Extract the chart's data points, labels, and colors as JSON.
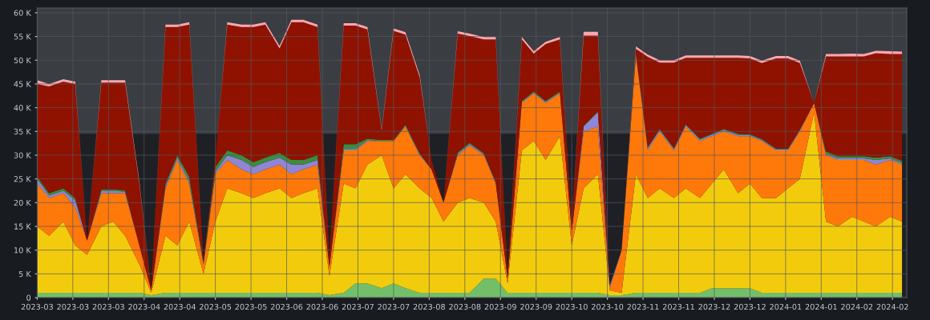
{
  "chart_data": {
    "type": "area",
    "stacked": true,
    "grid": true,
    "legend": false,
    "x": [
      "2023-03-01",
      "2023-03-06",
      "2023-03-12",
      "2023-03-17",
      "2023-03-22",
      "2023-03-28",
      "2023-04-02",
      "2023-04-07",
      "2023-04-13",
      "2023-04-18",
      "2023-04-24",
      "2023-04-29",
      "2023-05-04",
      "2023-05-10",
      "2023-05-15",
      "2023-05-20",
      "2023-05-26",
      "2023-05-31",
      "2023-06-05",
      "2023-06-11",
      "2023-06-16",
      "2023-06-21",
      "2023-06-27",
      "2023-07-02",
      "2023-07-08",
      "2023-07-13",
      "2023-07-18",
      "2023-07-24",
      "2023-07-29",
      "2023-08-03",
      "2023-08-09",
      "2023-08-14",
      "2023-08-19",
      "2023-08-25",
      "2023-08-30",
      "2023-09-05",
      "2023-09-10",
      "2023-09-15",
      "2023-09-21",
      "2023-09-26",
      "2023-10-01",
      "2023-10-07",
      "2023-10-12",
      "2023-10-17",
      "2023-10-23",
      "2023-10-28",
      "2023-11-02",
      "2023-11-08",
      "2023-11-13",
      "2023-11-18",
      "2023-11-24",
      "2023-11-29",
      "2023-12-05",
      "2023-12-10",
      "2023-12-15",
      "2023-12-21",
      "2023-12-26",
      "2023-12-31",
      "2024-01-06",
      "2024-01-11",
      "2024-01-16",
      "2024-01-22",
      "2024-01-27",
      "2024-02-01",
      "2024-02-07",
      "2024-02-12",
      "2024-02-17",
      "2024-02-23",
      "2024-02-28"
    ],
    "xlim": [
      "2023-03-01",
      "2024-03-01"
    ],
    "xticks": [
      {
        "value": "2023-03-01",
        "label": "2023-03"
      },
      {
        "value": "2023-03-16",
        "label": "2023-03"
      },
      {
        "value": "2023-03-31",
        "label": "2023-03"
      },
      {
        "value": "2023-04-15",
        "label": "2023-04"
      },
      {
        "value": "2023-04-30",
        "label": "2023-04"
      },
      {
        "value": "2023-05-15",
        "label": "2023-05"
      },
      {
        "value": "2023-05-30",
        "label": "2023-05"
      },
      {
        "value": "2023-06-14",
        "label": "2023-06"
      },
      {
        "value": "2023-06-29",
        "label": "2023-06"
      },
      {
        "value": "2023-07-14",
        "label": "2023-07"
      },
      {
        "value": "2023-07-29",
        "label": "2023-07"
      },
      {
        "value": "2023-08-13",
        "label": "2023-08"
      },
      {
        "value": "2023-08-28",
        "label": "2023-08"
      },
      {
        "value": "2023-09-12",
        "label": "2023-09"
      },
      {
        "value": "2023-09-27",
        "label": "2023-09"
      },
      {
        "value": "2023-10-12",
        "label": "2023-10"
      },
      {
        "value": "2023-10-27",
        "label": "2023-10"
      },
      {
        "value": "2023-11-11",
        "label": "2023-11"
      },
      {
        "value": "2023-11-26",
        "label": "2023-11"
      },
      {
        "value": "2023-12-11",
        "label": "2023-12"
      },
      {
        "value": "2023-12-26",
        "label": "2023-12"
      },
      {
        "value": "2024-01-10",
        "label": "2024-01"
      },
      {
        "value": "2024-01-25",
        "label": "2024-01"
      },
      {
        "value": "2024-02-09",
        "label": "2024-02"
      },
      {
        "value": "2024-02-24",
        "label": "2024-02"
      }
    ],
    "ylim": [
      0,
      61000
    ],
    "yticks": [
      0,
      {
        "value": 5000,
        "label": "5 K"
      },
      {
        "value": 10000,
        "label": "10 K"
      },
      {
        "value": 15000,
        "label": "15 K"
      },
      {
        "value": 20000,
        "label": "20 K"
      },
      {
        "value": 25000,
        "label": "25 K"
      },
      {
        "value": 30000,
        "label": "30 K"
      },
      {
        "value": 35000,
        "label": "35 K"
      },
      {
        "value": 40000,
        "label": "40 K"
      },
      {
        "value": 45000,
        "label": "45 K"
      },
      {
        "value": 50000,
        "label": "50 K"
      },
      {
        "value": 55000,
        "label": "55 K"
      },
      {
        "value": 60000,
        "label": "60 K"
      }
    ],
    "bands": [
      {
        "axis": "y",
        "from": 0,
        "to": 34500,
        "color": "#1e2025"
      }
    ],
    "series": [
      {
        "color": "#73bf69",
        "values": [
          1000,
          1000,
          1000,
          1000,
          1000,
          1000,
          1000,
          1000,
          1000,
          500,
          1000,
          1000,
          1000,
          1000,
          1000,
          1000,
          1000,
          1000,
          1000,
          1000,
          1000,
          1000,
          1000,
          500,
          1000,
          3000,
          3000,
          2000,
          3000,
          2000,
          1000,
          1000,
          1000,
          1000,
          1000,
          4000,
          4000,
          1000,
          1000,
          1000,
          1000,
          1000,
          1000,
          1000,
          1000,
          500,
          500,
          1000,
          1000,
          1000,
          1000,
          1000,
          1000,
          2000,
          2000,
          2000,
          2000,
          1000,
          1000,
          1000,
          1000,
          1000,
          1000,
          1000,
          1000,
          1000,
          1000,
          1000,
          1000
        ]
      },
      {
        "color": "#f2cc0c",
        "values": [
          14000,
          12000,
          15000,
          10000,
          8000,
          14000,
          15000,
          12000,
          6000,
          500,
          12000,
          10000,
          15000,
          4000,
          15000,
          22000,
          21000,
          20000,
          21000,
          22000,
          20000,
          21000,
          22000,
          4000,
          23000,
          20000,
          25000,
          28000,
          20000,
          24000,
          22000,
          20000,
          15000,
          19000,
          20000,
          16000,
          12000,
          2000,
          30000,
          32000,
          28000,
          33000,
          10000,
          22000,
          25000,
          1000,
          500,
          25000,
          20000,
          22000,
          20000,
          22000,
          20000,
          22000,
          25000,
          20000,
          22000,
          20000,
          20000,
          22000,
          24000,
          38000,
          15000,
          14000,
          16000,
          15000,
          14000,
          16000,
          15000
        ]
      },
      {
        "color": "#ff780a",
        "values": [
          9000,
          8000,
          6000,
          8000,
          3000,
          7000,
          6000,
          9000,
          4000,
          500,
          10000,
          18000,
          8000,
          2000,
          10000,
          6000,
          5000,
          5000,
          5000,
          5000,
          5000,
          5000,
          5000,
          2000,
          7000,
          8000,
          5000,
          3000,
          10000,
          10000,
          7000,
          6000,
          4000,
          10000,
          11000,
          10000,
          8000,
          1000,
          10000,
          10000,
          12000,
          9000,
          3000,
          12000,
          10000,
          500,
          9000,
          25000,
          10000,
          12000,
          10000,
          13000,
          12000,
          10000,
          8000,
          12000,
          10000,
          12000,
          10000,
          8000,
          10000,
          2000,
          14000,
          14000,
          12000,
          13000,
          13000,
          12000,
          12000
        ]
      },
      {
        "color": "#8f86d6",
        "values": [
          1000,
          500,
          500,
          1500,
          0,
          500,
          500,
          300,
          0,
          0,
          500,
          500,
          500,
          0,
          500,
          1000,
          2000,
          1500,
          1500,
          1500,
          2000,
          1000,
          1000,
          0,
          300,
          300,
          200,
          0,
          0,
          200,
          200,
          0,
          0,
          300,
          300,
          200,
          200,
          0,
          200,
          200,
          200,
          200,
          0,
          1000,
          3000,
          500,
          0,
          200,
          500,
          300,
          300,
          300,
          300,
          300,
          300,
          300,
          200,
          200,
          200,
          200,
          200,
          0,
          300,
          300,
          300,
          300,
          1000,
          300,
          300
        ]
      },
      {
        "color": "#3d8c40",
        "values": [
          500,
          500,
          500,
          500,
          0,
          300,
          300,
          300,
          0,
          0,
          500,
          500,
          1000,
          500,
          1000,
          1000,
          1000,
          1000,
          1000,
          1000,
          1000,
          1000,
          1000,
          0,
          1000,
          1000,
          300,
          200,
          200,
          200,
          200,
          0,
          0,
          300,
          300,
          200,
          200,
          0,
          200,
          200,
          200,
          200,
          0,
          200,
          200,
          0,
          0,
          200,
          200,
          200,
          200,
          200,
          200,
          200,
          200,
          200,
          200,
          200,
          200,
          200,
          200,
          0,
          500,
          500,
          500,
          500,
          500,
          500,
          500
        ]
      },
      {
        "color": "#8f1200",
        "values": [
          19500,
          22500,
          22500,
          24000,
          0,
          22500,
          22500,
          22700,
          13000,
          500,
          33000,
          27000,
          32000,
          500,
          2000,
          26500,
          27000,
          28500,
          28000,
          22000,
          29000,
          29000,
          27000,
          2000,
          25000,
          25000,
          23000,
          2000,
          23000,
          19000,
          16000,
          2000,
          0,
          25000,
          22500,
          24000,
          30000,
          1000,
          13000,
          8000,
          12000,
          11000,
          2000,
          19000,
          16000,
          0,
          0,
          1000,
          19000,
          14000,
          18000,
          14000,
          17000,
          16000,
          15000,
          16000,
          16000,
          16000,
          19000,
          19000,
          14000,
          0,
          20000,
          21000,
          21000,
          21000,
          22000,
          21500,
          22500
        ]
      },
      {
        "color": "#ffa6b0",
        "values": [
          800,
          500,
          500,
          500,
          0,
          500,
          500,
          500,
          500,
          0,
          500,
          500,
          500,
          0,
          0,
          500,
          500,
          500,
          500,
          500,
          500,
          500,
          500,
          0,
          500,
          500,
          500,
          300,
          500,
          500,
          500,
          0,
          0,
          500,
          500,
          500,
          500,
          0,
          500,
          500,
          500,
          500,
          0,
          800,
          800,
          0,
          0,
          500,
          500,
          500,
          500,
          500,
          500,
          500,
          500,
          500,
          500,
          500,
          500,
          500,
          500,
          0,
          500,
          500,
          600,
          500,
          500,
          600,
          500
        ]
      }
    ]
  }
}
